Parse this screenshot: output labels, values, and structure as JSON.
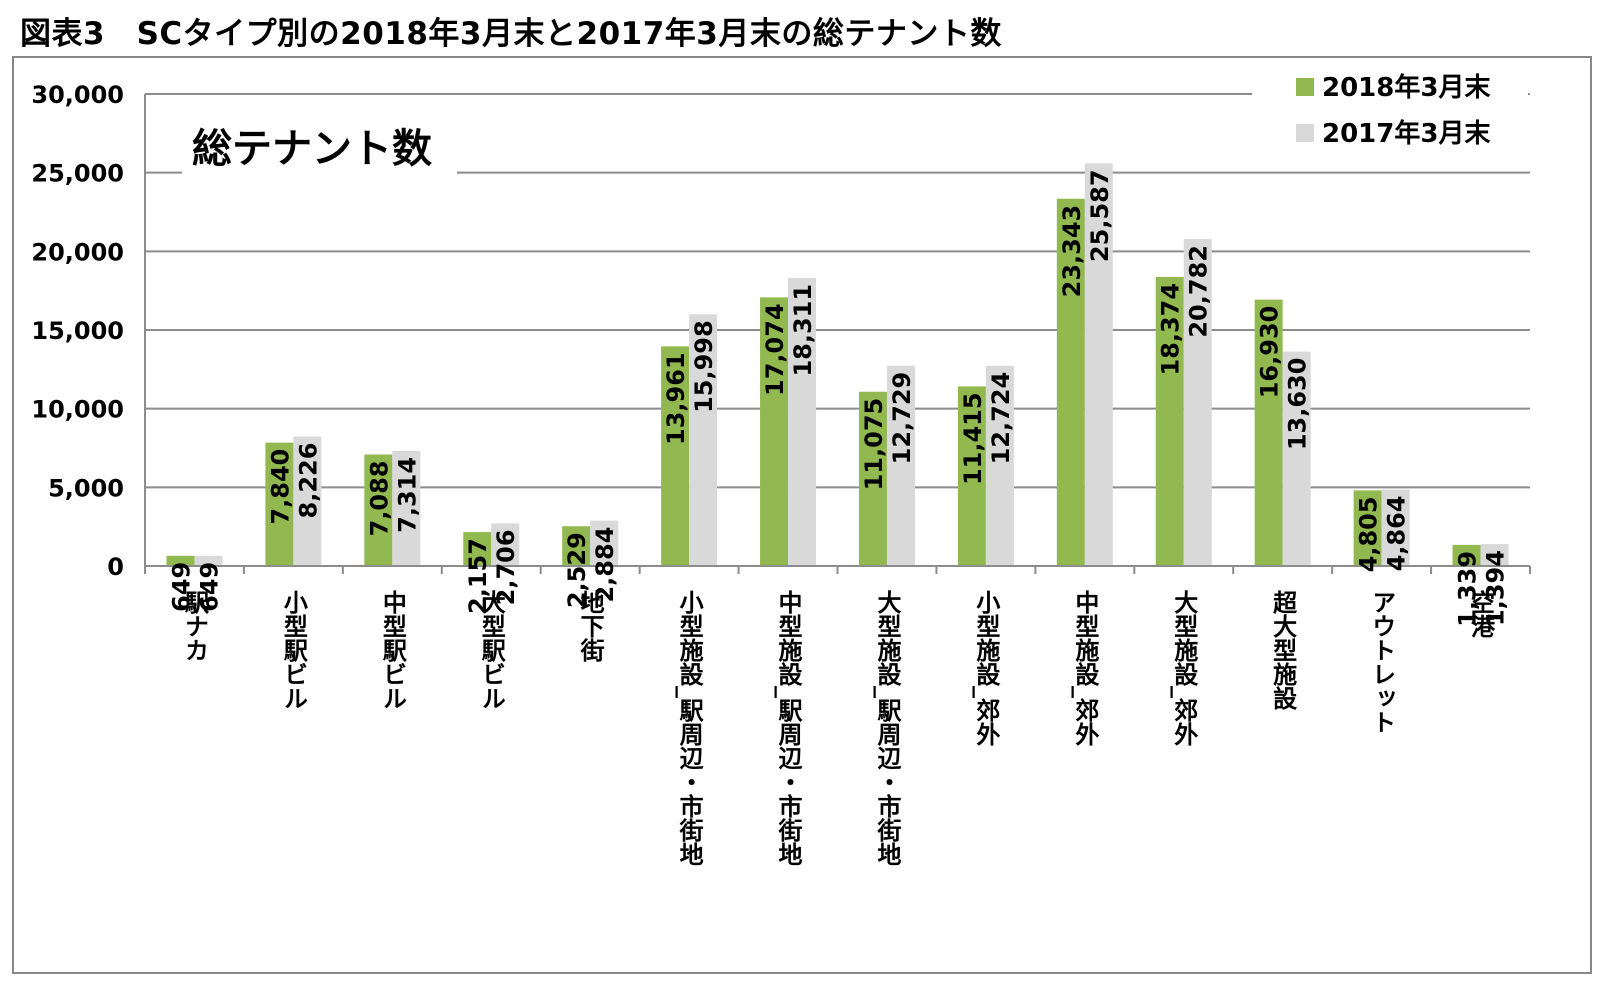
{
  "title": "図表3　SCタイプ別の2018年3月末と2017年3月末の総テナント数",
  "chart_data": {
    "type": "bar",
    "title": "図表3　SCタイプ別の2018年3月末と2017年3月末の総テナント数",
    "subtitle": "総テナント数",
    "xlabel": "",
    "ylabel": "",
    "ylim": [
      0,
      30000
    ],
    "yticks": [
      0,
      5000,
      10000,
      15000,
      20000,
      25000,
      30000
    ],
    "ytick_labels": [
      "0",
      "5,000",
      "10,000",
      "15,000",
      "20,000",
      "25,000",
      "30,000"
    ],
    "grid": true,
    "legend_position": "top-right",
    "categories": [
      "駅ナカ",
      "小型駅ビル",
      "中型駅ビル",
      "大型駅ビル",
      "地下街",
      "小型施設_駅周辺・市街地",
      "中型施設_駅周辺・市街地",
      "大型施設_駅周辺・市街地",
      "小型施設_郊外",
      "中型施設_郊外",
      "大型施設_郊外",
      "超大型施設",
      "アウトレット",
      "空港"
    ],
    "series": [
      {
        "name": "2018年3月末",
        "color": "#92b94f",
        "values": [
          649,
          7840,
          7088,
          2157,
          2529,
          13961,
          17074,
          11075,
          11415,
          23343,
          18374,
          16930,
          4805,
          1339
        ],
        "labels": [
          "649",
          "7,840",
          "7,088",
          "2,157",
          "2,529",
          "13,961",
          "17,074",
          "11,075",
          "11,415",
          "23,343",
          "18,374",
          "16,930",
          "4,805",
          "1,339"
        ]
      },
      {
        "name": "2017年3月末",
        "color": "#d9d9d9",
        "values": [
          649,
          8226,
          7314,
          2706,
          2884,
          15998,
          18311,
          12729,
          12724,
          25587,
          20782,
          13630,
          4864,
          1394
        ],
        "labels": [
          "649",
          "8,226",
          "7,314",
          "2,706",
          "2,884",
          "15,998",
          "18,311",
          "12,729",
          "12,724",
          "25,587",
          "20,782",
          "13,630",
          "4,864",
          "1,394"
        ]
      }
    ]
  }
}
